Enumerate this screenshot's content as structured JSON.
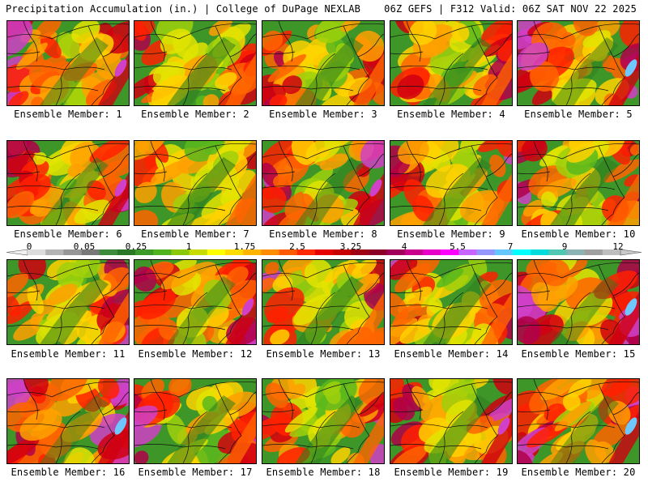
{
  "header": {
    "title": "Precipitation Accumulation (in.) | College of DuPage NEXLAB",
    "run_info": "06Z GEFS | F312 Valid: 06Z SAT NOV 22 2025"
  },
  "members": [
    {
      "label": "Ensemble Member: 1",
      "wetness": 0.72,
      "seed": 11
    },
    {
      "label": "Ensemble Member: 2",
      "wetness": 0.45,
      "seed": 23
    },
    {
      "label": "Ensemble Member: 3",
      "wetness": 0.55,
      "seed": 37
    },
    {
      "label": "Ensemble Member: 4",
      "wetness": 0.5,
      "seed": 41
    },
    {
      "label": "Ensemble Member: 5",
      "wetness": 0.78,
      "seed": 53
    },
    {
      "label": "Ensemble Member: 6",
      "wetness": 0.62,
      "seed": 67
    },
    {
      "label": "Ensemble Member: 7",
      "wetness": 0.4,
      "seed": 71
    },
    {
      "label": "Ensemble Member: 8",
      "wetness": 0.66,
      "seed": 83
    },
    {
      "label": "Ensemble Member: 9",
      "wetness": 0.58,
      "seed": 97
    },
    {
      "label": "Ensemble Member: 10",
      "wetness": 0.48,
      "seed": 101
    },
    {
      "label": "Ensemble Member: 11",
      "wetness": 0.6,
      "seed": 113
    },
    {
      "label": "Ensemble Member: 12",
      "wetness": 0.74,
      "seed": 127
    },
    {
      "label": "Ensemble Member: 13",
      "wetness": 0.42,
      "seed": 131
    },
    {
      "label": "Ensemble Member: 14",
      "wetness": 0.5,
      "seed": 149
    },
    {
      "label": "Ensemble Member: 15",
      "wetness": 0.8,
      "seed": 151
    },
    {
      "label": "Ensemble Member: 16",
      "wetness": 0.82,
      "seed": 163
    },
    {
      "label": "Ensemble Member: 17",
      "wetness": 0.55,
      "seed": 173
    },
    {
      "label": "Ensemble Member: 18",
      "wetness": 0.46,
      "seed": 181
    },
    {
      "label": "Ensemble Member: 19",
      "wetness": 0.64,
      "seed": 191
    },
    {
      "label": "Ensemble Member: 20",
      "wetness": 0.76,
      "seed": 197
    }
  ],
  "legend": {
    "tick_labels": [
      "0",
      "0.05",
      "0.25",
      "1",
      "1.75",
      "2.5",
      "3.25",
      "4",
      "5.5",
      "7",
      "9",
      "12"
    ],
    "colors": [
      "#dcdcdc",
      "#b4b4b4",
      "#969696",
      "#787878",
      "#3c8c3c",
      "#287828",
      "#3c9a28",
      "#50b41e",
      "#8cc80a",
      "#c8dc00",
      "#ffff00",
      "#ffdc00",
      "#ffb400",
      "#ff8c00",
      "#ff5a00",
      "#ff2800",
      "#e60000",
      "#c80000",
      "#a00014",
      "#8c0028",
      "#a0005a",
      "#c8008c",
      "#e600c8",
      "#ff00ff",
      "#c864ff",
      "#9696ff",
      "#64c8ff",
      "#00ffff",
      "#00dcdc",
      "#50c8b4",
      "#8cb4b4",
      "#a0a0a0",
      "#bebebe"
    ]
  }
}
